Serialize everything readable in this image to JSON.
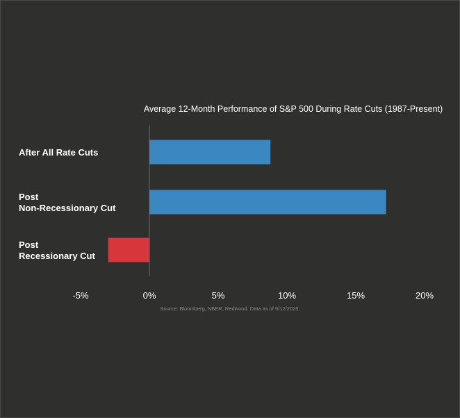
{
  "chart_data": {
    "type": "bar",
    "orientation": "horizontal",
    "title": "Average 12-Month Performance of S&P 500 During Rate Cuts (1987-Present)",
    "categories": [
      [
        "After All Rate Cuts"
      ],
      [
        "Post",
        "Non-Recessionary Cut"
      ],
      [
        "Post",
        "Recessionary Cut"
      ]
    ],
    "values": [
      8.8,
      17.2,
      -3.0
    ],
    "colors": [
      "#3a87c1",
      "#3a87c1",
      "#d7363c"
    ],
    "xlim": [
      -5,
      20
    ],
    "xticks": [
      -5,
      0,
      5,
      10,
      15,
      20
    ],
    "xtick_labels": [
      "-5%",
      "0%",
      "5%",
      "10%",
      "15%",
      "20%"
    ],
    "source": "Source: Bloomberg, NBER, Redwood. Data as of 9/12/2025.",
    "grid": false,
    "legend": "none"
  }
}
